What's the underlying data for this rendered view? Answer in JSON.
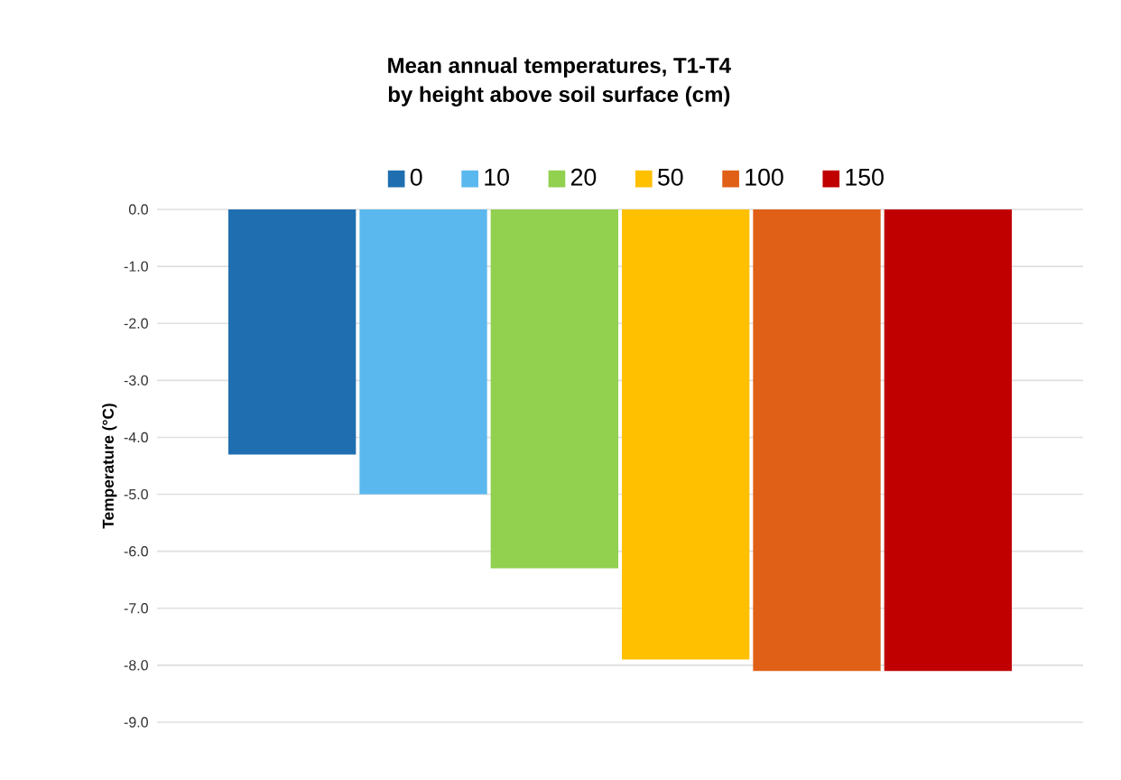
{
  "chart_data": {
    "type": "bar",
    "title": "Mean annual temperatures, T1-T4\nby height above soil surface (cm)",
    "ylabel": "Temperature (°C)",
    "categories": [
      null
    ],
    "series": [
      {
        "name": "0",
        "color": "#1f6fb0",
        "values": [
          -4.3
        ]
      },
      {
        "name": "10",
        "color": "#5bb8ee",
        "values": [
          -5.0
        ]
      },
      {
        "name": "20",
        "color": "#92d050",
        "values": [
          -6.3
        ]
      },
      {
        "name": "50",
        "color": "#ffc000",
        "values": [
          -7.9
        ]
      },
      {
        "name": "100",
        "color": "#e06018",
        "values": [
          -8.1
        ]
      },
      {
        "name": "150",
        "color": "#c00000",
        "values": [
          -8.1
        ]
      }
    ],
    "ylim": [
      -9,
      0
    ],
    "yticks": [
      {
        "value": 0,
        "label": "0.0"
      },
      {
        "value": -1,
        "label": "-1.0"
      },
      {
        "value": -2,
        "label": "-2.0"
      },
      {
        "value": -3,
        "label": "-3.0"
      },
      {
        "value": -4,
        "label": "-4.0"
      },
      {
        "value": -5,
        "label": "-5.0"
      },
      {
        "value": -6,
        "label": "-6.0"
      },
      {
        "value": -7,
        "label": "-7.0"
      },
      {
        "value": -8,
        "label": "-8.0"
      },
      {
        "value": -9,
        "label": "-9.0"
      }
    ],
    "grid": "y",
    "legend": "top"
  }
}
